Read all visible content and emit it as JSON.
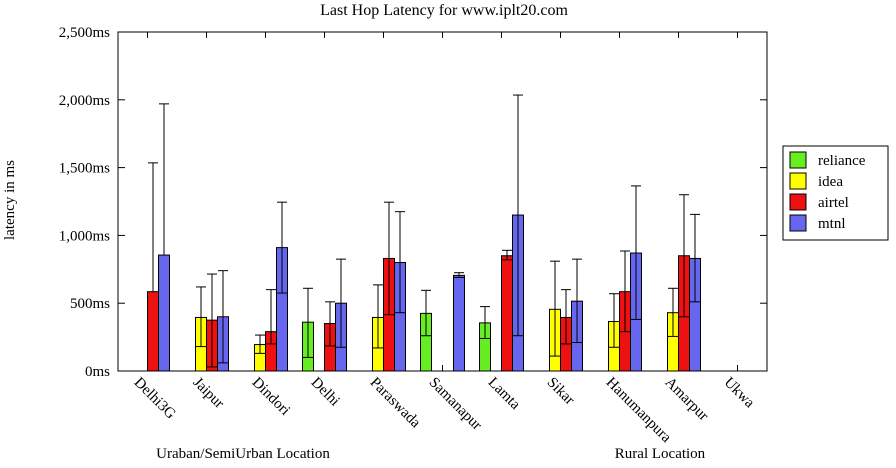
{
  "chart_data": {
    "type": "bar",
    "title": "Last Hop Latency for www.iplt20.com",
    "ylabel": "latency in ms",
    "xlabel": "",
    "ylim": [
      0,
      2500
    ],
    "yticks": [
      {
        "value": 0,
        "label": "0ms"
      },
      {
        "value": 500,
        "label": "500ms"
      },
      {
        "value": 1000,
        "label": "1,000ms"
      },
      {
        "value": 1500,
        "label": "1,500ms"
      },
      {
        "value": 2000,
        "label": "2,000ms"
      },
      {
        "value": 2500,
        "label": "2,500ms"
      }
    ],
    "grid": false,
    "legend_position": "right",
    "categories": [
      "Delhi3G",
      "Jaipur",
      "Dindori",
      "Delhi",
      "Paraswada",
      "Samanapur",
      "Lamta",
      "Sikar",
      "Hanumanpura",
      "Amarpur",
      "Ukwa"
    ],
    "group_labels": [
      {
        "label": "Uraban/SemiUrban Location"
      },
      {
        "label": "Rural Location"
      }
    ],
    "series": [
      {
        "name": "reliance",
        "color": "#66ee22",
        "values": [
          null,
          null,
          null,
          360,
          null,
          425,
          355,
          null,
          null,
          null,
          null
        ],
        "err_low": [
          null,
          null,
          null,
          100,
          null,
          260,
          240,
          null,
          null,
          null,
          null
        ],
        "err_high": [
          null,
          null,
          null,
          610,
          null,
          595,
          475,
          null,
          null,
          null,
          null
        ]
      },
      {
        "name": "idea",
        "color": "#ffff00",
        "values": [
          null,
          395,
          195,
          null,
          395,
          null,
          null,
          455,
          365,
          430,
          null
        ],
        "err_low": [
          null,
          180,
          130,
          null,
          170,
          null,
          null,
          110,
          175,
          255,
          null
        ],
        "err_high": [
          null,
          620,
          265,
          null,
          635,
          null,
          null,
          810,
          570,
          610,
          null
        ]
      },
      {
        "name": "airtel",
        "color": "#ee1111",
        "values": [
          585,
          375,
          290,
          350,
          830,
          null,
          850,
          395,
          585,
          850,
          null
        ],
        "err_low": [
          null,
          30,
          200,
          185,
          415,
          null,
          820,
          200,
          290,
          400,
          null
        ],
        "err_high": [
          1535,
          715,
          600,
          510,
          1245,
          null,
          890,
          600,
          885,
          1300,
          null
        ],
        "err_low_omitted_for": [
          "Delhi3G"
        ]
      },
      {
        "name": "mtnl",
        "color": "#6666ee",
        "values": [
          855,
          400,
          910,
          500,
          800,
          705,
          1150,
          515,
          870,
          830,
          null
        ],
        "err_low": [
          null,
          60,
          575,
          175,
          430,
          690,
          260,
          210,
          380,
          510,
          null
        ],
        "err_high": [
          1970,
          740,
          1245,
          825,
          1175,
          725,
          2035,
          825,
          1365,
          1155,
          null
        ]
      }
    ]
  }
}
